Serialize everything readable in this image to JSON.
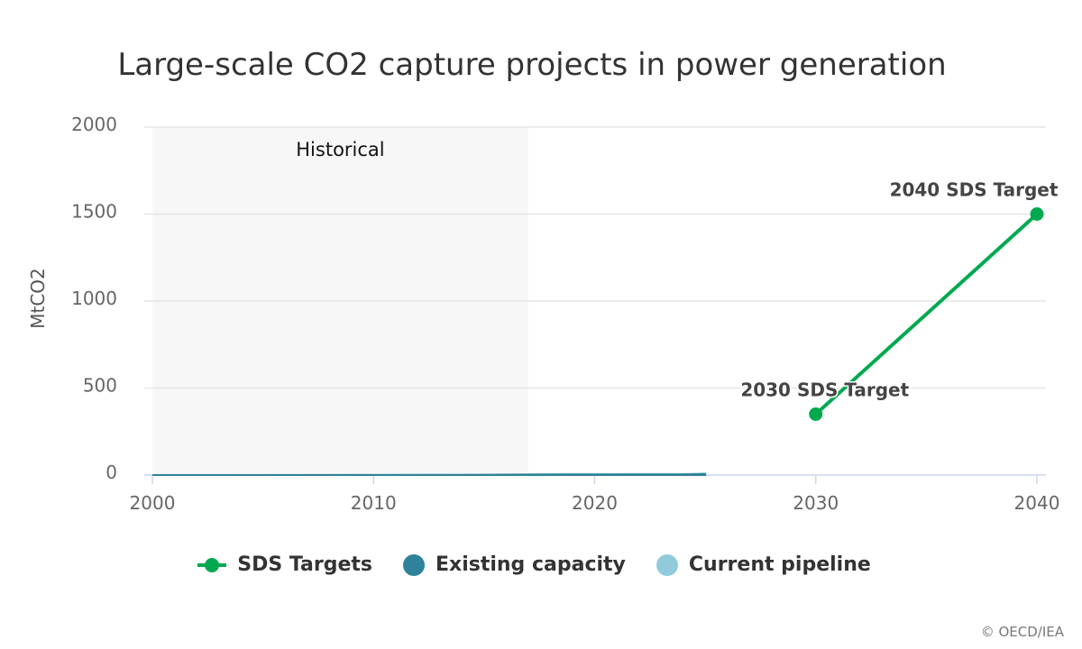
{
  "chart_data": {
    "type": "line",
    "title": "Large-scale CO2 capture projects in power generation",
    "ylabel": "MtCO2",
    "xlabel": "",
    "xlim": [
      2000,
      2040
    ],
    "ylim": [
      0,
      2000
    ],
    "x_ticks": [
      "2000",
      "2010",
      "2020",
      "2030",
      "2040"
    ],
    "y_ticks": [
      "0",
      "500",
      "1000",
      "1500",
      "2000"
    ],
    "grid": true,
    "shaded_band": {
      "label": "Historical",
      "from": 2000,
      "to": 2017
    },
    "series": [
      {
        "name": "SDS Targets",
        "style": "line-markers",
        "color": "#00a94f",
        "points": [
          [
            2030,
            350
          ],
          [
            2040,
            1500
          ]
        ],
        "labels": [
          "2030 SDS Target",
          "2040 SDS Target"
        ]
      },
      {
        "name": "Existing capacity",
        "style": "area",
        "color": "#2e8299",
        "points": [
          [
            2000,
            0
          ],
          [
            2014,
            1
          ],
          [
            2017,
            3
          ],
          [
            2020,
            4
          ],
          [
            2024,
            4
          ],
          [
            2025,
            5
          ]
        ]
      },
      {
        "name": "Current pipeline",
        "style": "area",
        "color": "#91cbdb",
        "points": [
          [
            2017,
            3
          ],
          [
            2020,
            4
          ],
          [
            2024,
            5
          ],
          [
            2025,
            10
          ]
        ]
      }
    ],
    "legend_position": "bottom"
  },
  "credit": "© OECD/IEA"
}
